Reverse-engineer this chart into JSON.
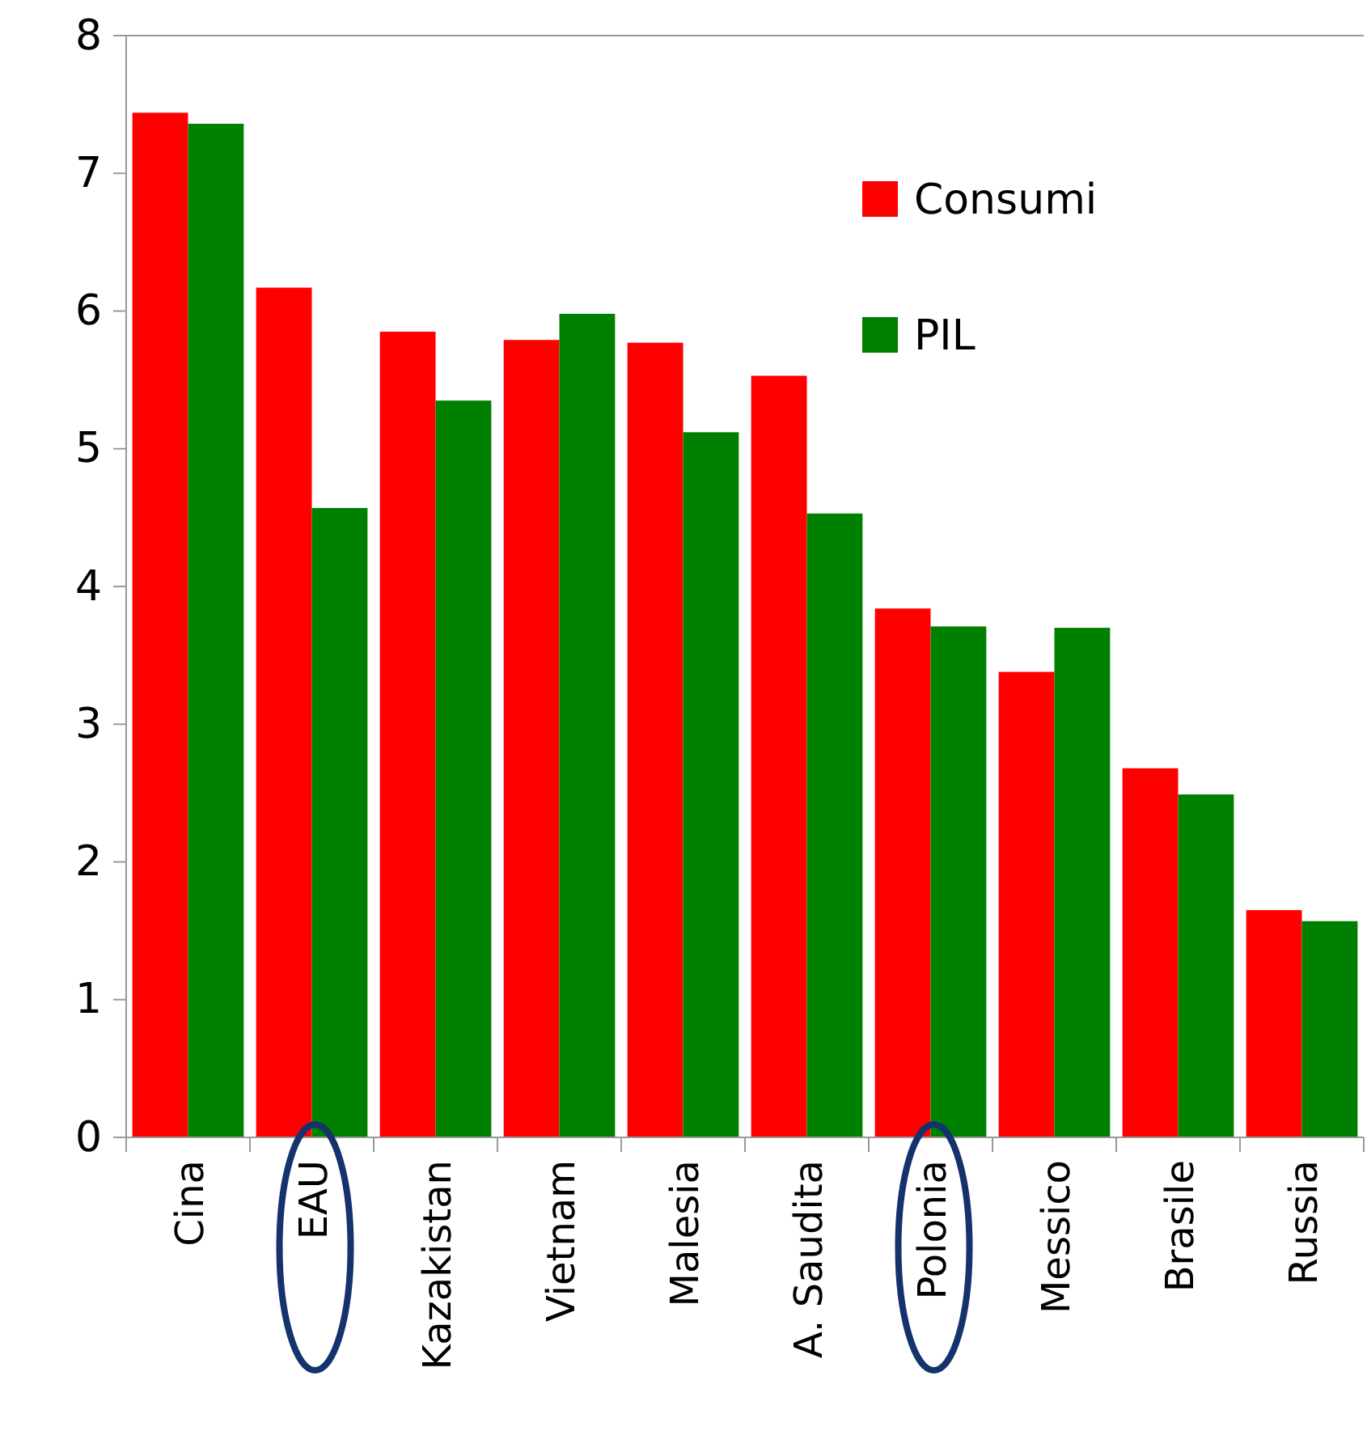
{
  "chart_data": {
    "type": "bar",
    "categories": [
      "Cina",
      "EAU",
      "Kazakistan",
      "Vietnam",
      "Malesia",
      "A. Saudita",
      "Polonia",
      "Messico",
      "Brasile",
      "Russia"
    ],
    "series": [
      {
        "name": "Consumi",
        "color": "#ff0000",
        "values": [
          7.44,
          6.17,
          5.85,
          5.79,
          5.77,
          5.53,
          3.84,
          3.38,
          2.68,
          1.65
        ]
      },
      {
        "name": "PIL",
        "color": "#008000",
        "values": [
          7.36,
          4.57,
          5.35,
          5.98,
          5.12,
          4.53,
          3.71,
          3.7,
          2.49,
          1.57
        ]
      }
    ],
    "ylim": [
      0,
      8
    ],
    "yticks": [
      0,
      1,
      2,
      3,
      4,
      5,
      6,
      7,
      8
    ],
    "grid": false,
    "legend": "top right"
  }
}
